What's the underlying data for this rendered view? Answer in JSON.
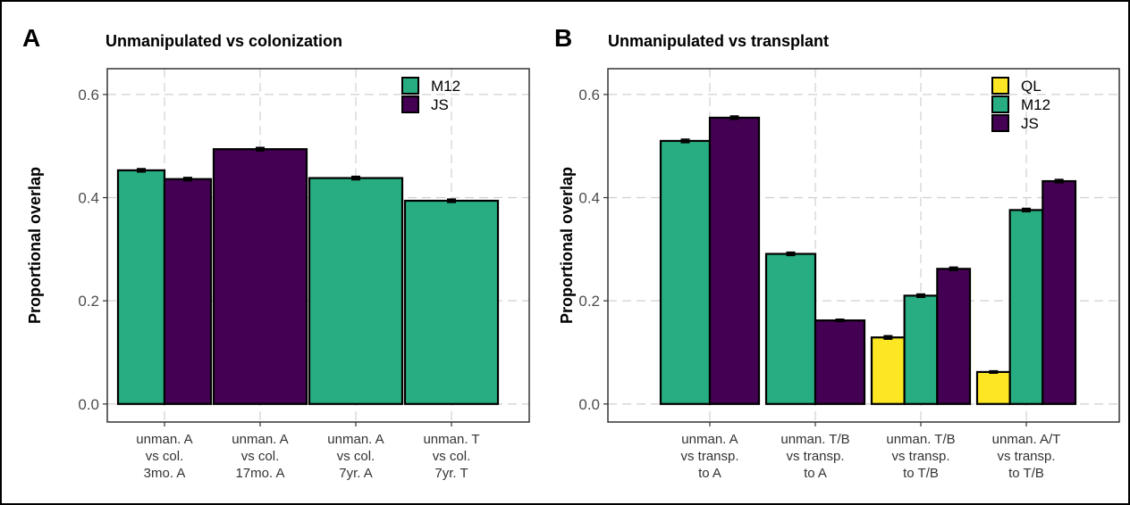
{
  "chart_data": [
    {
      "type": "bar",
      "panel_label": "A",
      "title": "Unmanipulated vs colonization",
      "y_label": "Proportional overlap",
      "categories": [
        [
          "unman. A",
          "vs col.",
          "3mo. A"
        ],
        [
          "unman. A",
          "vs col.",
          "17mo. A"
        ],
        [
          "unman. A",
          "vs col.",
          "7yr. A"
        ],
        [
          "unman. T",
          "vs col.",
          "7yr. T"
        ]
      ],
      "series": [
        {
          "name": "M12",
          "color": "#27ad81",
          "values": [
            0.453,
            null,
            0.438,
            0.394
          ],
          "errors": [
            0.003,
            null,
            0.003,
            0.003
          ]
        },
        {
          "name": "JS",
          "color": "#440154",
          "values": [
            0.436,
            0.494,
            null,
            null
          ],
          "errors": [
            0.003,
            0.003,
            null,
            null
          ]
        }
      ],
      "ylim": [
        -0.035,
        0.65
      ],
      "yticks": [
        {
          "value": 0,
          "label": "0.0"
        },
        0.2,
        0.4,
        0.6
      ],
      "grid": true,
      "legend_position": "top-right"
    },
    {
      "type": "bar",
      "panel_label": "B",
      "title": "Unmanipulated vs transplant",
      "y_label": "Proportional overlap",
      "categories": [
        [
          "unman. A",
          "vs transp.",
          "to A"
        ],
        [
          "unman. T/B",
          "vs transp.",
          "to A"
        ],
        [
          "unman. T/B",
          "vs transp.",
          "to T/B"
        ],
        [
          "unman. A/T",
          "vs transp.",
          "to T/B"
        ]
      ],
      "series": [
        {
          "name": "QL",
          "color": "#fde725",
          "values": [
            null,
            null,
            0.129,
            0.062
          ],
          "errors": [
            null,
            null,
            0.003,
            0.002
          ]
        },
        {
          "name": "M12",
          "color": "#27ad81",
          "values": [
            0.51,
            0.291,
            0.21,
            0.376
          ],
          "errors": [
            0.003,
            0.003,
            0.003,
            0.003
          ]
        },
        {
          "name": "JS",
          "color": "#440154",
          "values": [
            0.555,
            0.162,
            0.262,
            0.432
          ],
          "errors": [
            0.003,
            0.002,
            0.003,
            0.003
          ]
        }
      ],
      "ylim": [
        -0.035,
        0.65
      ],
      "yticks": [
        {
          "value": 0,
          "label": "0.0"
        },
        0.2,
        0.4,
        0.6
      ],
      "grid": true,
      "legend_position": "top-right"
    }
  ]
}
